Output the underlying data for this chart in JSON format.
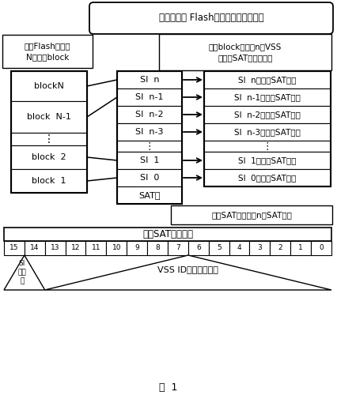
{
  "title": "基于扇区的 Flash管理原理分配示意图",
  "left_box_title": "整块Flash划分为\nN个擦除block",
  "left_blocks": [
    "blockN",
    "block  N-1",
    ":",
    "block  2",
    "block  1"
  ],
  "middle_rows": [
    "SI  n",
    "SI  n-1",
    "SI  n-2",
    "SI  n-3",
    ":",
    "SI  1",
    "SI  0",
    "SAT表"
  ],
  "right_rows": [
    "SI  n对应的SAT单元",
    "SI  n-1对应的SAT单元",
    "SI  n-2对应的SAT单元",
    "SI  n-3对应的SAT单元",
    ":",
    "SI  1对应的SAT单元",
    "SI  0对应的SAT单元"
  ],
  "top_right_note": "一个block划分为n个VSS\n和一个SAT扇区分配表",
  "bottom_note": "一个SAT表包含有n个SAT单元",
  "sat_title": "一个SAT单元表示",
  "sat_bits": [
    "15",
    "14",
    "13",
    "12",
    "11",
    "10",
    "9",
    "8",
    "7",
    "6",
    "5",
    "4",
    "3",
    "2",
    "1",
    "0"
  ],
  "sat_label_left": "SI\n属性\n位",
  "sat_label_right": "VSS ID逻辑号表示位",
  "figure_label": "图  1",
  "bg_color": "#ffffff"
}
